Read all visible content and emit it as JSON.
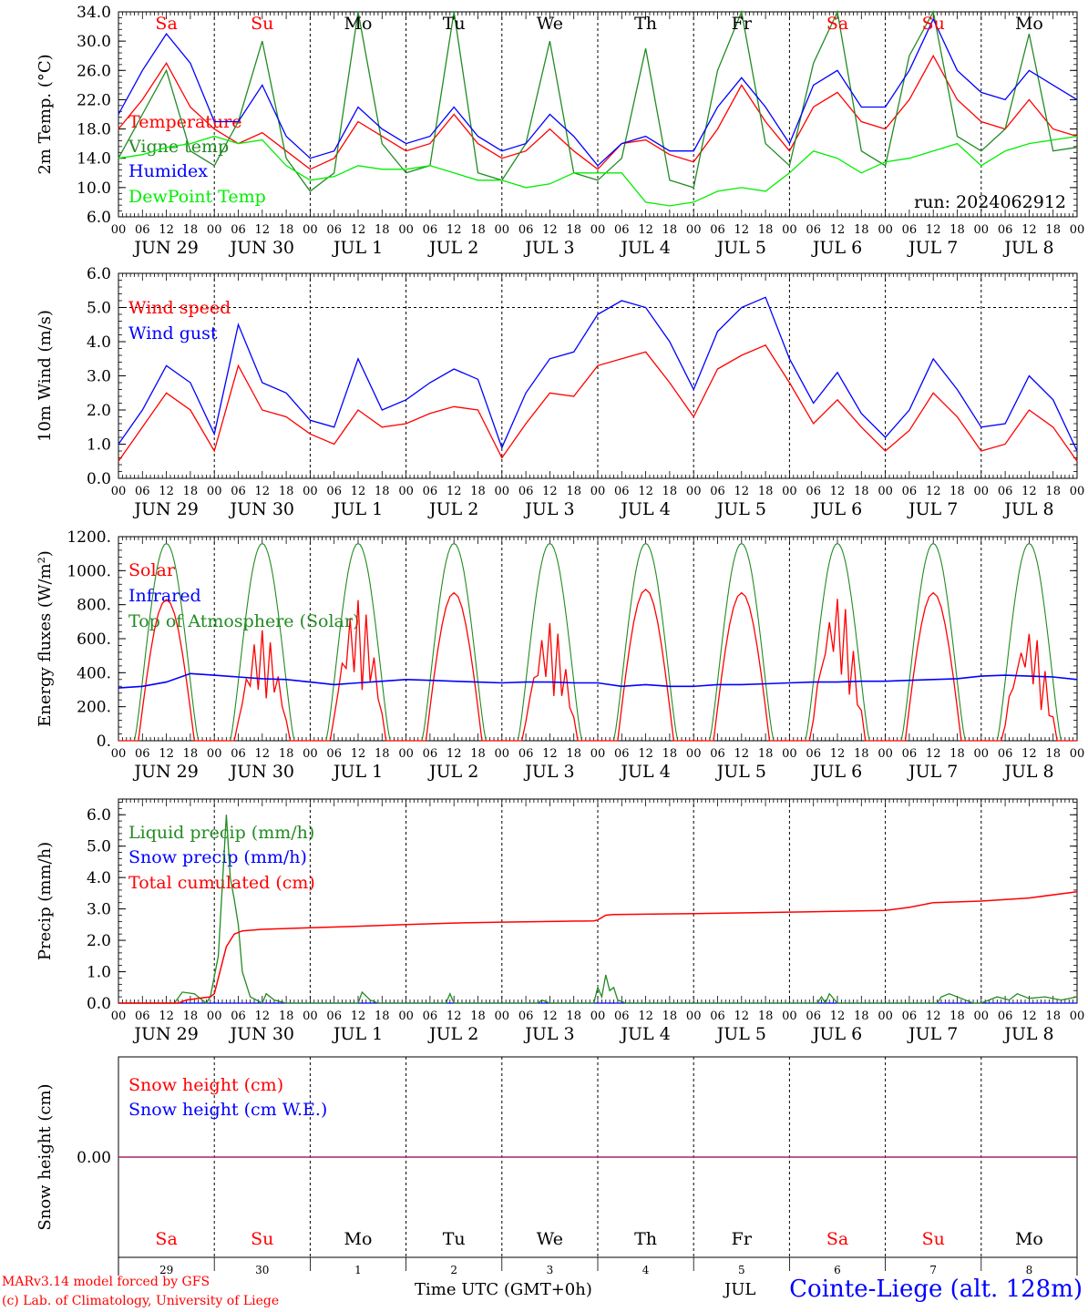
{
  "run_label": "run: 2024062912",
  "time_axis": {
    "hour_ticks": [
      "00",
      "06",
      "12",
      "18"
    ],
    "date_labels": [
      "JUN 29",
      "JUN 30",
      "JUL  1",
      "JUL  2",
      "JUL  3",
      "JUL  4",
      "JUL  5",
      "JUL  6",
      "JUL  7",
      "JUL  8"
    ],
    "day_names": [
      "Sa",
      "Su",
      "Mo",
      "Tu",
      "We",
      "Th",
      "Fr",
      "Sa",
      "Su",
      "Mo"
    ],
    "weekend_flags": [
      true,
      true,
      false,
      false,
      false,
      false,
      false,
      true,
      true,
      false
    ],
    "day_numbers": [
      "29",
      "30",
      "1",
      "2",
      "3",
      "4",
      "5",
      "6",
      "7",
      "8"
    ],
    "hours_total": 240
  },
  "colors": {
    "weekend": "#ff0000",
    "weekday": "#000000"
  },
  "chart_data": [
    {
      "type": "line",
      "ylabel": "2m Temp. (°C)",
      "ylim": [
        6,
        34
      ],
      "yticks": [
        "6.0",
        "10.0",
        "14.0",
        "18.0",
        "22.0",
        "26.0",
        "30.0",
        "34.0"
      ],
      "hlines": [],
      "legend": [
        "Temperature",
        "Vigne temp",
        "Humidex",
        "DewPoint Temp"
      ],
      "x_hours": [
        0,
        6,
        12,
        18,
        24,
        30,
        36,
        42,
        48,
        54,
        60,
        66,
        72,
        78,
        84,
        90,
        96,
        102,
        108,
        114,
        120,
        126,
        132,
        138,
        144,
        150,
        156,
        162,
        168,
        174,
        180,
        186,
        192,
        198,
        204,
        210,
        216,
        222,
        228,
        234,
        240
      ],
      "series": [
        {
          "name": "Temperature",
          "color": "#ff0000",
          "values": [
            18,
            22,
            27,
            21,
            18,
            16,
            17.5,
            15,
            12.5,
            14,
            19,
            17,
            15,
            16,
            20,
            16,
            14,
            15,
            18,
            15,
            12.5,
            16,
            16.5,
            14.5,
            13.5,
            18,
            24,
            19,
            15,
            21,
            23,
            19,
            18,
            22,
            28,
            22,
            19,
            18,
            22,
            18,
            17
          ]
        },
        {
          "name": "Vigne temp",
          "color": "#228b22",
          "values": [
            14,
            20,
            26,
            15,
            13,
            19,
            30,
            14,
            9.5,
            12,
            35,
            16,
            12,
            13,
            34,
            12,
            11,
            16,
            30,
            12,
            11,
            14,
            29,
            11,
            10,
            26,
            35,
            16,
            13,
            27,
            36,
            15,
            13,
            28,
            36,
            17,
            15,
            18,
            31,
            15,
            15.5
          ]
        },
        {
          "name": "Humidex",
          "color": "#0000ff",
          "values": [
            20,
            26,
            31,
            27,
            19,
            19,
            24,
            17,
            14,
            15,
            21,
            18,
            16,
            17,
            21,
            17,
            15,
            16,
            20,
            17,
            13,
            16,
            17,
            15,
            15,
            21,
            25,
            21,
            16,
            24,
            26,
            21,
            21,
            26,
            33,
            26,
            23,
            22,
            26,
            24,
            22
          ]
        },
        {
          "name": "DewPoint Temp",
          "color": "#00ee00",
          "values": [
            14,
            14.5,
            15.5,
            16,
            17,
            16,
            16.5,
            13,
            11,
            11.5,
            13,
            12.5,
            12.5,
            13,
            12,
            11,
            11,
            10,
            10.5,
            12,
            12,
            12,
            8,
            7.5,
            8,
            9.5,
            10,
            9.5,
            12,
            15,
            14,
            12,
            13.5,
            14,
            15,
            16,
            13,
            15,
            16,
            16.5,
            17
          ]
        }
      ]
    },
    {
      "type": "line",
      "ylabel": "10m Wind (m/s)",
      "ylim": [
        0,
        6
      ],
      "yticks": [
        "0.0",
        "1.0",
        "2.0",
        "3.0",
        "4.0",
        "5.0",
        "6.0"
      ],
      "hlines": [
        5
      ],
      "legend": [
        "Wind speed",
        "Wind gust"
      ],
      "x_hours": [
        0,
        6,
        12,
        18,
        24,
        30,
        36,
        42,
        48,
        54,
        60,
        66,
        72,
        78,
        84,
        90,
        96,
        102,
        108,
        114,
        120,
        126,
        132,
        138,
        144,
        150,
        156,
        162,
        168,
        174,
        180,
        186,
        192,
        198,
        204,
        210,
        216,
        222,
        228,
        234,
        240
      ],
      "series": [
        {
          "name": "Wind speed",
          "color": "#ff0000",
          "values": [
            0.5,
            1.5,
            2.5,
            2.0,
            0.8,
            3.3,
            2.0,
            1.8,
            1.3,
            1.0,
            2.0,
            1.5,
            1.6,
            1.9,
            2.1,
            2.0,
            0.6,
            1.6,
            2.5,
            2.4,
            3.3,
            3.5,
            3.7,
            2.8,
            1.8,
            3.2,
            3.6,
            3.9,
            2.8,
            1.6,
            2.3,
            1.5,
            0.8,
            1.4,
            2.5,
            1.8,
            0.8,
            1.0,
            2.0,
            1.5,
            0.5
          ]
        },
        {
          "name": "Wind gust",
          "color": "#0000ff",
          "values": [
            1.0,
            2.0,
            3.3,
            2.8,
            1.3,
            4.5,
            2.8,
            2.5,
            1.7,
            1.5,
            3.5,
            2.0,
            2.3,
            2.8,
            3.2,
            2.9,
            0.9,
            2.5,
            3.5,
            3.7,
            4.8,
            5.2,
            5.0,
            4.0,
            2.6,
            4.3,
            5.0,
            5.3,
            3.5,
            2.2,
            3.1,
            1.9,
            1.2,
            2.0,
            3.5,
            2.6,
            1.5,
            1.6,
            3.0,
            2.3,
            0.8
          ]
        }
      ]
    },
    {
      "type": "line",
      "ylabel": "Energy fluxes (W/m²)",
      "ylim": [
        0,
        1200
      ],
      "yticks": [
        "0.",
        "200.",
        "400.",
        "600.",
        "800.",
        "1000.",
        "1200."
      ],
      "hlines": [],
      "legend": [
        "Solar",
        "Infrared",
        "Top of Atmosphere (Solar)"
      ],
      "toa_peak": 1160,
      "solar_peaks": [
        830,
        650,
        830,
        870,
        700,
        890,
        870,
        860,
        870,
        660
      ],
      "infrared_values": [
        310,
        320,
        345,
        395,
        385,
        375,
        365,
        360,
        345,
        330,
        340,
        350,
        360,
        355,
        350,
        345,
        340,
        345,
        345,
        340,
        340,
        320,
        330,
        320,
        320,
        330,
        330,
        335,
        340,
        345,
        345,
        350,
        350,
        355,
        360,
        365,
        380,
        385,
        380,
        375,
        360
      ],
      "series": [
        {
          "name": "Solar",
          "color": "#ff0000"
        },
        {
          "name": "Infrared",
          "color": "#0000ff"
        },
        {
          "name": "Top of Atmosphere (Solar)",
          "color": "#228b22"
        }
      ]
    },
    {
      "type": "line",
      "ylabel": "Precip (mm/h)",
      "ylim": [
        0,
        6.5
      ],
      "yticks": [
        "0.0",
        "1.0",
        "2.0",
        "3.0",
        "4.0",
        "5.0",
        "6.0"
      ],
      "hlines": [],
      "legend": [
        "Liquid precip (mm/h)",
        "Snow precip (mm/h)",
        "Total cumulated (cm)"
      ],
      "liquid_points": [
        [
          0,
          0
        ],
        [
          14,
          0
        ],
        [
          16,
          0.35
        ],
        [
          19,
          0.3
        ],
        [
          22,
          0
        ],
        [
          23,
          0.2
        ],
        [
          25,
          1.5
        ],
        [
          27,
          6.0
        ],
        [
          28,
          4.0
        ],
        [
          29,
          3.3
        ],
        [
          30,
          2.5
        ],
        [
          31,
          1.0
        ],
        [
          33,
          0.2
        ],
        [
          36,
          0
        ],
        [
          37,
          0.3
        ],
        [
          39,
          0.1
        ],
        [
          42,
          0
        ],
        [
          60,
          0
        ],
        [
          61,
          0.35
        ],
        [
          63,
          0.1
        ],
        [
          65,
          0
        ],
        [
          82,
          0
        ],
        [
          83,
          0.3
        ],
        [
          84,
          0
        ],
        [
          105,
          0
        ],
        [
          106,
          0.1
        ],
        [
          108,
          0
        ],
        [
          119,
          0
        ],
        [
          120,
          0.5
        ],
        [
          121,
          0.2
        ],
        [
          122,
          0.9
        ],
        [
          123,
          0.4
        ],
        [
          124,
          0.5
        ],
        [
          125,
          0.1
        ],
        [
          127,
          0
        ],
        [
          175,
          0
        ],
        [
          176,
          0.2
        ],
        [
          177,
          0
        ],
        [
          178,
          0.3
        ],
        [
          180,
          0
        ],
        [
          205,
          0
        ],
        [
          206,
          0.2
        ],
        [
          208,
          0.3
        ],
        [
          211,
          0.15
        ],
        [
          214,
          0
        ],
        [
          216,
          0
        ],
        [
          220,
          0.2
        ],
        [
          223,
          0.1
        ],
        [
          225,
          0.3
        ],
        [
          228,
          0.15
        ],
        [
          232,
          0.2
        ],
        [
          236,
          0.1
        ],
        [
          240,
          0.2
        ]
      ],
      "total_points": [
        [
          0,
          0
        ],
        [
          15,
          0
        ],
        [
          17,
          0.1
        ],
        [
          20,
          0.15
        ],
        [
          23,
          0.2
        ],
        [
          24,
          0.3
        ],
        [
          25,
          0.8
        ],
        [
          27,
          1.8
        ],
        [
          29,
          2.2
        ],
        [
          31,
          2.3
        ],
        [
          36,
          2.35
        ],
        [
          48,
          2.4
        ],
        [
          60,
          2.45
        ],
        [
          72,
          2.5
        ],
        [
          84,
          2.55
        ],
        [
          96,
          2.58
        ],
        [
          108,
          2.6
        ],
        [
          119,
          2.62
        ],
        [
          120,
          2.65
        ],
        [
          122,
          2.8
        ],
        [
          124,
          2.82
        ],
        [
          144,
          2.85
        ],
        [
          168,
          2.9
        ],
        [
          192,
          2.95
        ],
        [
          198,
          3.05
        ],
        [
          204,
          3.2
        ],
        [
          216,
          3.25
        ],
        [
          228,
          3.35
        ],
        [
          240,
          3.55
        ]
      ],
      "series": [
        {
          "name": "Liquid precip (mm/h)",
          "color": "#228b22"
        },
        {
          "name": "Snow precip (mm/h)",
          "color": "#0000ff"
        },
        {
          "name": "Total cumulated (cm)",
          "color": "#ff0000"
        }
      ]
    },
    {
      "type": "line",
      "ylabel": "Snow height (cm)",
      "ylim": [
        -1,
        1
      ],
      "yticks": [
        "0.00"
      ],
      "hlines": [],
      "legend": [
        "Snow height (cm)",
        "Snow height (cm W.E.)"
      ],
      "series": [
        {
          "name": "Snow height (cm)",
          "color": "#ff0000",
          "values": [
            0,
            0
          ]
        },
        {
          "name": "Snow height (cm W.E.)",
          "color": "#0000ff",
          "values": [
            0,
            0
          ]
        }
      ]
    }
  ],
  "footer": {
    "model_line1": "MARv3.14 model forced by GFS",
    "model_line2": "(c) Lab. of Climatology, University of Liege",
    "axis_title": "Time UTC (GMT+0h)",
    "month_overlap": "JUL",
    "station": "Cointe-Liege (alt. 128m)"
  }
}
